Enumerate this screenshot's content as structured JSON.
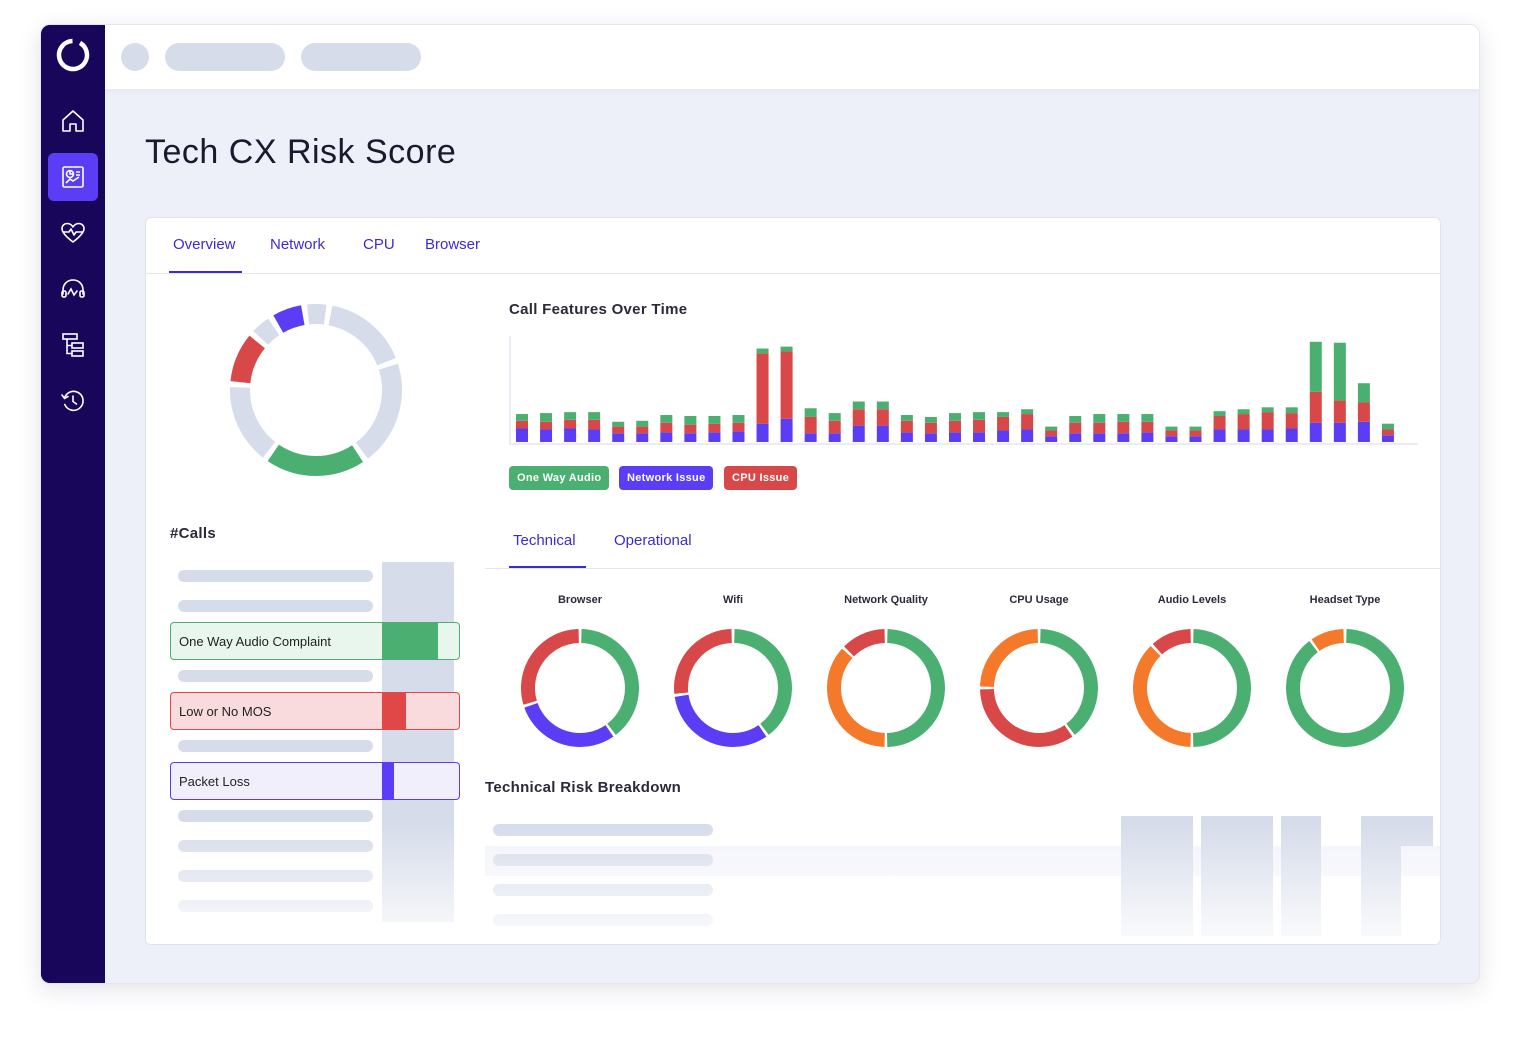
{
  "page": {
    "title": "Tech CX Risk Score"
  },
  "sidebar": {
    "items": [
      {
        "icon": "home-icon"
      },
      {
        "icon": "report-icon",
        "active": true
      },
      {
        "icon": "heart-pulse-icon"
      },
      {
        "icon": "headset-icon"
      },
      {
        "icon": "hierarchy-icon"
      },
      {
        "icon": "history-icon"
      }
    ]
  },
  "tabs": [
    {
      "label": "Overview",
      "active": true
    },
    {
      "label": "Network"
    },
    {
      "label": "CPU"
    },
    {
      "label": "Browser"
    }
  ],
  "calls": {
    "title": "#Calls",
    "rows": [
      {
        "label": "One Way Audio Complaint",
        "color": "#4caf72"
      },
      {
        "label": "Low or No MOS",
        "color": "#e04848"
      },
      {
        "label": "Packet Loss",
        "color": "#5b3df5"
      }
    ]
  },
  "colors": {
    "green": "#4caf72",
    "red": "#d94848",
    "purple": "#5b3df5",
    "orange": "#f5792a",
    "gray": "#d6dcea"
  },
  "chart_data": {
    "type": "bar",
    "title": "Call Features Over Time",
    "stacked": true,
    "series": [
      {
        "name": "Network Issue",
        "color": "#5b3df5",
        "values": [
          14,
          13,
          14,
          13,
          9,
          9,
          10,
          9,
          10,
          11,
          19,
          24,
          9,
          9,
          17,
          17,
          10,
          9,
          10,
          10,
          12,
          13,
          6,
          9,
          9,
          9,
          10,
          6,
          6,
          13,
          13,
          13,
          14,
          20,
          20,
          21,
          7
        ]
      },
      {
        "name": "CPU Issue",
        "color": "#d94848",
        "values": [
          8,
          8,
          9,
          10,
          7,
          7,
          10,
          9,
          9,
          9,
          73,
          70,
          17,
          13,
          17,
          17,
          12,
          11,
          12,
          13,
          14,
          16,
          6,
          11,
          11,
          12,
          11,
          6,
          6,
          14,
          16,
          18,
          16,
          32,
          23,
          20,
          6
        ]
      },
      {
        "name": "One Way Audio",
        "color": "#4caf72",
        "values": [
          7,
          9,
          8,
          8,
          5,
          6,
          8,
          9,
          8,
          8,
          5,
          5,
          9,
          8,
          8,
          8,
          6,
          6,
          8,
          8,
          5,
          5,
          4,
          7,
          9,
          8,
          8,
          4,
          4,
          5,
          5,
          5,
          6,
          52,
          60,
          20,
          6
        ]
      }
    ],
    "ylim": [
      0,
      110
    ],
    "legend": [
      "One Way Audio",
      "Network Issue",
      "CPU Issue"
    ]
  },
  "overview_donut": {
    "segments": [
      {
        "value": 5,
        "color": "#d6dcea"
      },
      {
        "value": 18,
        "color": "#d6dcea"
      },
      {
        "value": 22,
        "color": "#d6dcea"
      },
      {
        "value": 21,
        "color": "#4caf72"
      },
      {
        "value": 17,
        "color": "#d6dcea"
      },
      {
        "value": 11,
        "color": "#d94848"
      },
      {
        "value": 5,
        "color": "#d6dcea"
      },
      {
        "value": 7,
        "color": "#5b3df5"
      }
    ]
  },
  "sub_tabs": [
    {
      "label": "Technical",
      "active": true
    },
    {
      "label": "Operational"
    }
  ],
  "donuts": [
    {
      "label": "Browser",
      "segments": [
        {
          "value": 40,
          "color": "#4caf72"
        },
        {
          "value": 30,
          "color": "#5b3df5"
        },
        {
          "value": 30,
          "color": "#d94848"
        }
      ]
    },
    {
      "label": "Wifi",
      "segments": [
        {
          "value": 40,
          "color": "#4caf72"
        },
        {
          "value": 33,
          "color": "#5b3df5"
        },
        {
          "value": 27,
          "color": "#d94848"
        }
      ]
    },
    {
      "label": "Network Quality",
      "segments": [
        {
          "value": 50,
          "color": "#4caf72"
        },
        {
          "value": 37,
          "color": "#f5792a"
        },
        {
          "value": 13,
          "color": "#d94848"
        }
      ]
    },
    {
      "label": "CPU Usage",
      "segments": [
        {
          "value": 40,
          "color": "#4caf72"
        },
        {
          "value": 35,
          "color": "#d94848"
        },
        {
          "value": 25,
          "color": "#f5792a"
        }
      ]
    },
    {
      "label": "Audio Levels",
      "segments": [
        {
          "value": 50,
          "color": "#4caf72"
        },
        {
          "value": 38,
          "color": "#f5792a"
        },
        {
          "value": 12,
          "color": "#d94848"
        }
      ]
    },
    {
      "label": "Headset Type",
      "segments": [
        {
          "value": 90,
          "color": "#4caf72"
        },
        {
          "value": 10,
          "color": "#f5792a"
        }
      ]
    }
  ],
  "breakdown": {
    "title": "Technical Risk Breakdown"
  }
}
